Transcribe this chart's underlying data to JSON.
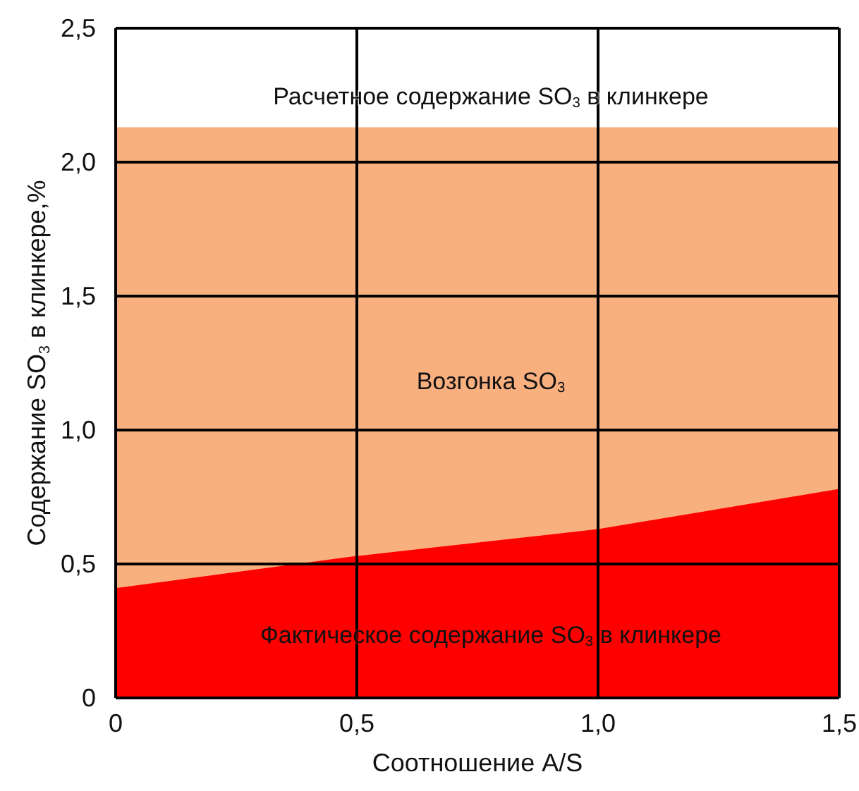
{
  "chart_data": {
    "type": "area",
    "xlabel": "Соотношение A/S",
    "ylabel": "Содержание SO$_{3}$ в клинкере,%",
    "xlim": [
      0,
      1.5
    ],
    "xticks": [
      0,
      {
        "value": 0.5,
        "label": "0,5"
      },
      {
        "value": 1.0,
        "label": "1,0"
      },
      {
        "value": 1.5,
        "label": "1,5"
      }
    ],
    "ylim": [
      0,
      2.5
    ],
    "yticks": [
      0,
      {
        "value": 0.5,
        "label": "0,5"
      },
      {
        "value": 1.0,
        "label": "1,0"
      },
      {
        "value": 1.5,
        "label": "1,5"
      },
      {
        "value": 2.0,
        "label": "2,0"
      },
      {
        "value": 2.5,
        "label": "2,5"
      }
    ],
    "grid": true,
    "series": [
      {
        "color": "#f9b07f",
        "x": [
          0,
          1.5
        ],
        "values": [
          2.13,
          2.13
        ]
      },
      {
        "color": "#ff0000",
        "x": [
          0,
          0.5,
          1.0,
          1.5
        ],
        "values": [
          0.41,
          0.53,
          0.63,
          0.78
        ]
      }
    ],
    "annotations": [
      "Расчетное содержание SO$_{3}$ в клинкере",
      "Возгонка SO$_{3}$",
      "Фактическое содержание SO$_{3}$ в клинкере"
    ]
  }
}
